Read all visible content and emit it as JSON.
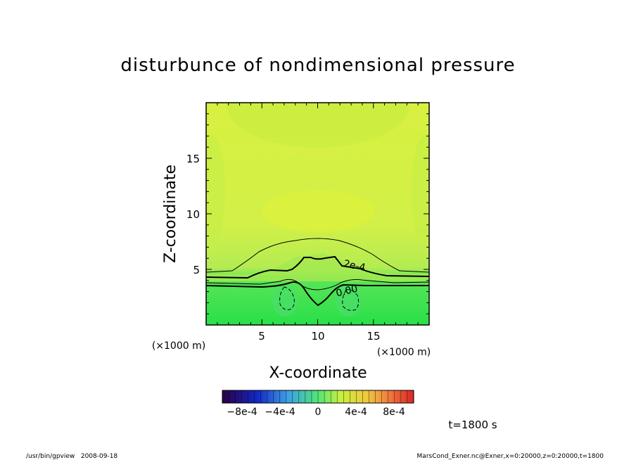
{
  "chart_data": {
    "type": "heatmap",
    "title": "disturbunce of nondimensional pressure",
    "xlabel": "X-coordinate",
    "ylabel": "Z-coordinate",
    "x_unit": "(×1000 m)",
    "y_unit": "(×1000 m)",
    "xlim": [
      0,
      20
    ],
    "ylim": [
      0,
      20
    ],
    "x_ticks": [
      "5",
      "10",
      "15"
    ],
    "y_ticks": [
      "5",
      "10",
      "15"
    ],
    "contour_labels": [
      "2e-4",
      "0.00"
    ],
    "colorbar": {
      "ticks": [
        "−8e-4",
        "−4e-4",
        "0",
        "4e-4",
        "8e-4"
      ],
      "range": [
        -0.001,
        0.001
      ]
    },
    "time_label": "t=1800 s",
    "footer_left": "/usr/bin/gpview   2008-09-18",
    "footer_right": "MarsCond_Exner.nc@Exner,x=0:20000,z=0:20000,t=1800"
  }
}
